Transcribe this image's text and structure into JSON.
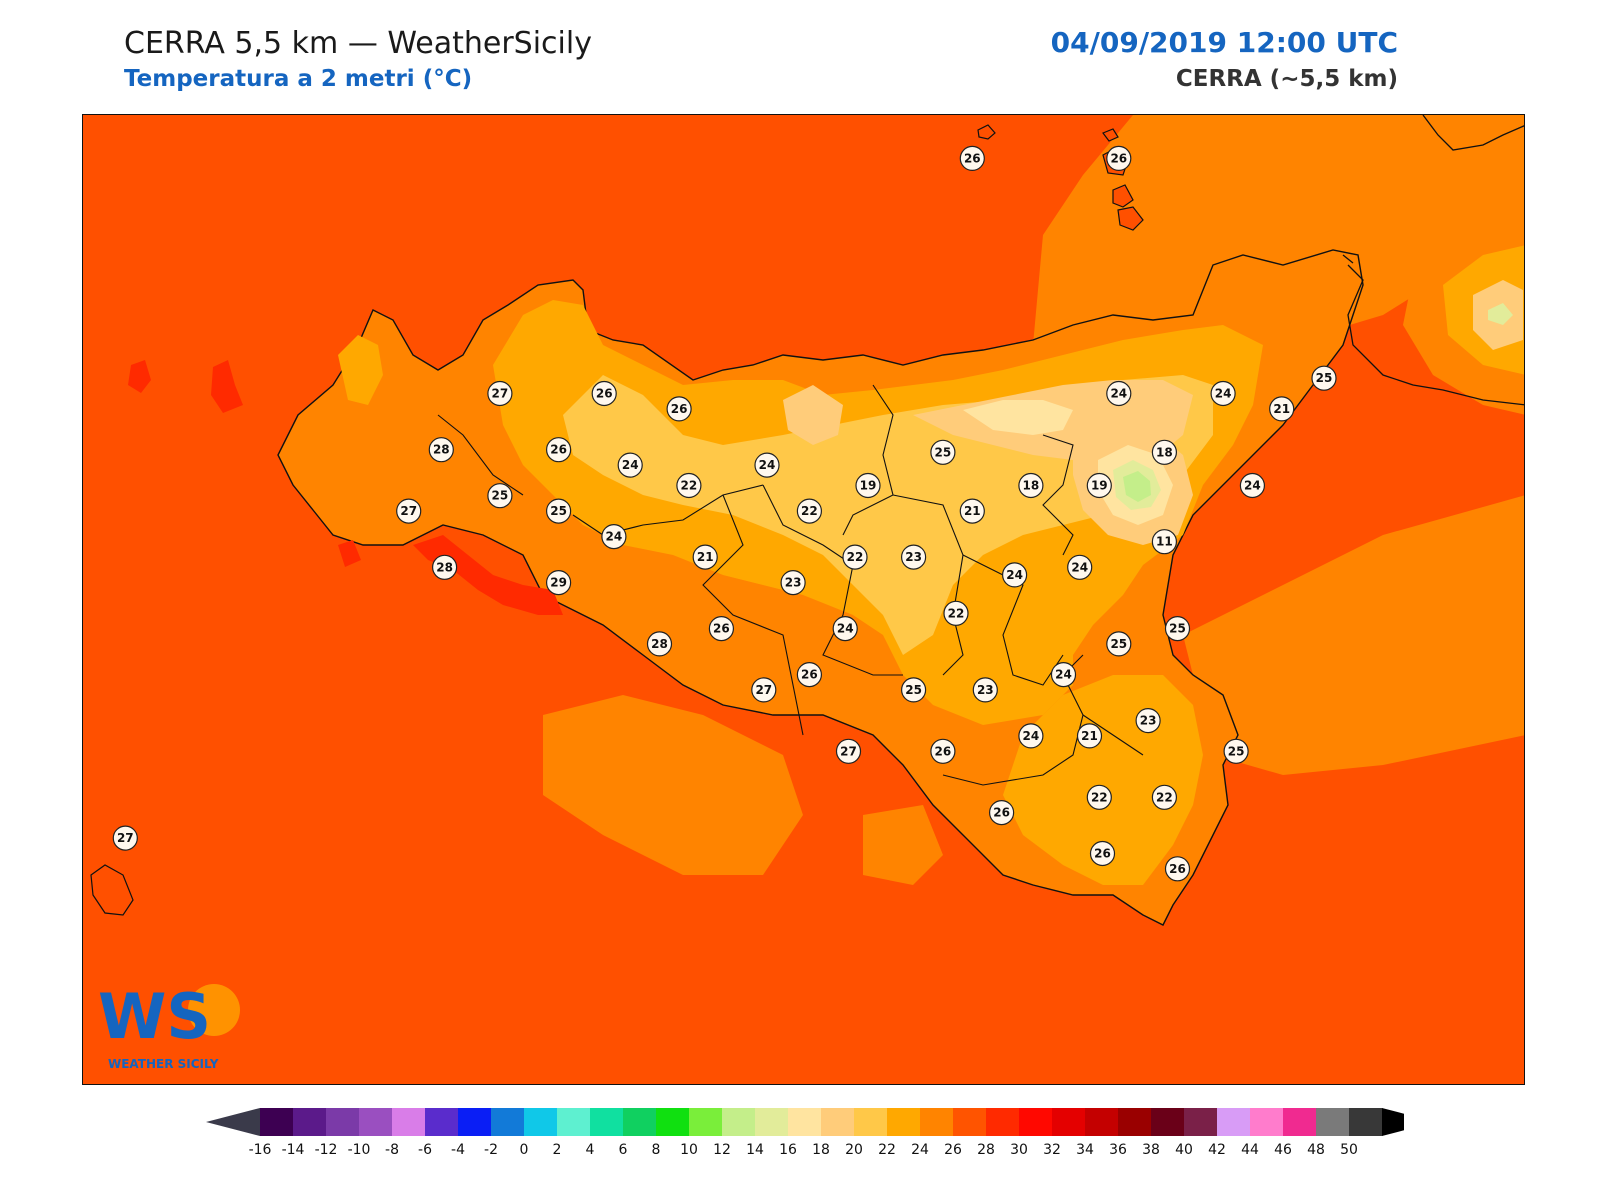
{
  "header": {
    "title": "CERRA 5,5 km — WeatherSicily",
    "subtitle": "Temperatura a 2 metri (°C)",
    "datetime": "04/09/2019 12:00 UTC",
    "model": "CERRA (~5,5 km)"
  },
  "logo": {
    "letters": "WS",
    "name": "WEATHER SICILY"
  },
  "colorbar": {
    "ticks": [
      "-16",
      "-14",
      "-12",
      "-10",
      "-8",
      "-6",
      "-4",
      "-2",
      "0",
      "2",
      "4",
      "6",
      "8",
      "10",
      "12",
      "14",
      "16",
      "18",
      "20",
      "22",
      "24",
      "26",
      "28",
      "30",
      "32",
      "34",
      "36",
      "38",
      "40",
      "42",
      "44",
      "46",
      "48",
      "50"
    ],
    "colors": [
      "#3d0052",
      "#5b1a8a",
      "#7b3aa8",
      "#9a4fc0",
      "#d97de8",
      "#5a2ccc",
      "#0a1ef5",
      "#127ad8",
      "#10c8e8",
      "#5ef0d0",
      "#10e0a0",
      "#10d060",
      "#10e010",
      "#7aee3a",
      "#c4ee8a",
      "#e2ec9a",
      "#ffe4a0",
      "#ffcc7a",
      "#ffc848",
      "#ffa800",
      "#ff8400",
      "#ff5400",
      "#ff2a00",
      "#ff0800",
      "#e40000",
      "#c40000",
      "#9a0000",
      "#6a0018",
      "#7a2048",
      "#d89cf6",
      "#ff7ccc",
      "#f02a90",
      "#7a7a7a",
      "#383838"
    ],
    "under_color": "#3a3a4a",
    "over_color": "#000000"
  },
  "stations": [
    {
      "v": "26",
      "lon": 14.6,
      "lat": 39.58
    },
    {
      "v": "26",
      "lon": 15.05,
      "lat": 39.58
    },
    {
      "v": "27",
      "lon": 13.15,
      "lat": 38.66
    },
    {
      "v": "26",
      "lon": 13.47,
      "lat": 38.66
    },
    {
      "v": "26",
      "lon": 13.7,
      "lat": 38.6
    },
    {
      "v": "28",
      "lon": 12.97,
      "lat": 38.44
    },
    {
      "v": "26",
      "lon": 13.33,
      "lat": 38.44
    },
    {
      "v": "24",
      "lon": 13.55,
      "lat": 38.38
    },
    {
      "v": "22",
      "lon": 13.73,
      "lat": 38.3
    },
    {
      "v": "24",
      "lon": 13.97,
      "lat": 38.38
    },
    {
      "v": "19",
      "lon": 14.28,
      "lat": 38.3
    },
    {
      "v": "25",
      "lon": 14.51,
      "lat": 38.43
    },
    {
      "v": "24",
      "lon": 15.05,
      "lat": 38.66
    },
    {
      "v": "24",
      "lon": 15.37,
      "lat": 38.66
    },
    {
      "v": "25",
      "lon": 15.68,
      "lat": 38.72
    },
    {
      "v": "21",
      "lon": 15.55,
      "lat": 38.6
    },
    {
      "v": "18",
      "lon": 15.19,
      "lat": 38.43
    },
    {
      "v": "18",
      "lon": 14.78,
      "lat": 38.3
    },
    {
      "v": "19",
      "lon": 14.99,
      "lat": 38.3
    },
    {
      "v": "24",
      "lon": 15.46,
      "lat": 38.3
    },
    {
      "v": "25",
      "lon": 13.15,
      "lat": 38.26
    },
    {
      "v": "25",
      "lon": 13.33,
      "lat": 38.2
    },
    {
      "v": "27",
      "lon": 12.87,
      "lat": 38.2
    },
    {
      "v": "24",
      "lon": 13.5,
      "lat": 38.1
    },
    {
      "v": "22",
      "lon": 14.1,
      "lat": 38.2
    },
    {
      "v": "21",
      "lon": 14.6,
      "lat": 38.2
    },
    {
      "v": "11",
      "lon": 15.19,
      "lat": 38.08
    },
    {
      "v": "28",
      "lon": 12.98,
      "lat": 37.98
    },
    {
      "v": "21",
      "lon": 13.78,
      "lat": 38.02
    },
    {
      "v": "22",
      "lon": 14.24,
      "lat": 38.02
    },
    {
      "v": "23",
      "lon": 14.42,
      "lat": 38.02
    },
    {
      "v": "24",
      "lon": 14.73,
      "lat": 37.95
    },
    {
      "v": "24",
      "lon": 14.93,
      "lat": 37.98
    },
    {
      "v": "29",
      "lon": 13.33,
      "lat": 37.92
    },
    {
      "v": "23",
      "lon": 14.05,
      "lat": 37.92
    },
    {
      "v": "22",
      "lon": 14.55,
      "lat": 37.8
    },
    {
      "v": "26",
      "lon": 13.83,
      "lat": 37.74
    },
    {
      "v": "24",
      "lon": 14.21,
      "lat": 37.74
    },
    {
      "v": "25",
      "lon": 15.23,
      "lat": 37.74
    },
    {
      "v": "25",
      "lon": 15.05,
      "lat": 37.68
    },
    {
      "v": "28",
      "lon": 13.64,
      "lat": 37.68
    },
    {
      "v": "26",
      "lon": 14.1,
      "lat": 37.56
    },
    {
      "v": "24",
      "lon": 14.88,
      "lat": 37.56
    },
    {
      "v": "27",
      "lon": 13.96,
      "lat": 37.5
    },
    {
      "v": "25",
      "lon": 14.42,
      "lat": 37.5
    },
    {
      "v": "23",
      "lon": 14.64,
      "lat": 37.5
    },
    {
      "v": "23",
      "lon": 15.14,
      "lat": 37.38
    },
    {
      "v": "24",
      "lon": 14.78,
      "lat": 37.32
    },
    {
      "v": "21",
      "lon": 14.96,
      "lat": 37.32
    },
    {
      "v": "27",
      "lon": 14.22,
      "lat": 37.26
    },
    {
      "v": "26",
      "lon": 14.51,
      "lat": 37.26
    },
    {
      "v": "25",
      "lon": 15.41,
      "lat": 37.26
    },
    {
      "v": "22",
      "lon": 14.99,
      "lat": 37.08
    },
    {
      "v": "22",
      "lon": 15.19,
      "lat": 37.08
    },
    {
      "v": "26",
      "lon": 14.69,
      "lat": 37.02
    },
    {
      "v": "26",
      "lon": 15.0,
      "lat": 36.86
    },
    {
      "v": "26",
      "lon": 15.23,
      "lat": 36.8
    },
    {
      "v": "27",
      "lon": 12.0,
      "lat": 36.92
    }
  ],
  "fields": {
    "sea_color": "#ff5000",
    "land_colors": [
      "#ff8400",
      "#ffa800",
      "#ffc848",
      "#ffcc7a",
      "#ffe4a0",
      "#e2ec9a",
      "#c4ee8a",
      "#ff2a00"
    ]
  }
}
